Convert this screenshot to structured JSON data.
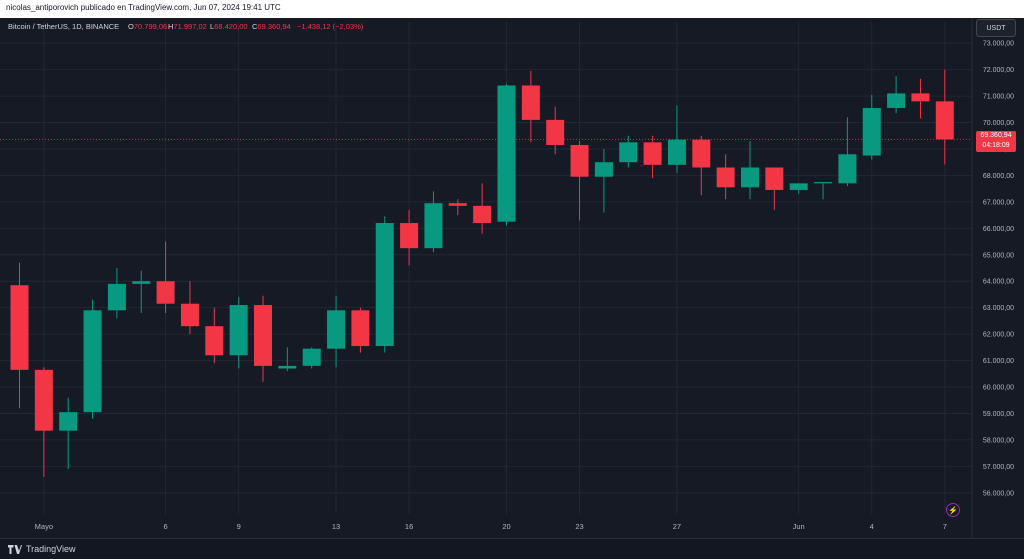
{
  "header": {
    "publisher_line": "nicolas_antiporovich publicado en TradingView.com, Jun 07, 2024 19:41 UTC"
  },
  "symbol": {
    "name": "Bitcoin / TetherUS, 1D, BINANCE",
    "o_label": "O",
    "o_value": "70.799,06",
    "h_label": "H",
    "h_value": "71.997,02",
    "l_label": "L",
    "l_value": "68.420,00",
    "c_label": "C",
    "c_value": "69.360,94",
    "change": "−1.438,12 (−2,03%)"
  },
  "currency_badge": "USDT",
  "last_price": {
    "value": "69.360,94",
    "countdown": "04:18:09"
  },
  "footer": {
    "brand": "TradingView"
  },
  "colors": {
    "up": "#089981",
    "down": "#f23645",
    "background": "#161a25",
    "grid": "#232733"
  },
  "chart_data": {
    "type": "candlestick",
    "ylim": [
      55200,
      73800
    ],
    "y_ticks": [
      56000,
      57000,
      58000,
      59000,
      60000,
      61000,
      62000,
      63000,
      64000,
      65000,
      66000,
      67000,
      68000,
      69000,
      70000,
      71000,
      72000,
      73000
    ],
    "y_tick_labels": [
      "56.000,00",
      "57.000,00",
      "58.000,00",
      "59.000,00",
      "60.000,00",
      "61.000,00",
      "62.000,00",
      "63.000,00",
      "64.000,00",
      "65.000,00",
      "66.000,00",
      "67.000,00",
      "68.000,00",
      "69.000,00",
      "70.000,00",
      "71.000,00",
      "72.000,00",
      "73.000,00"
    ],
    "x_tick_labels": [
      {
        "index": 1,
        "label": "Mayo"
      },
      {
        "index": 6,
        "label": "6"
      },
      {
        "index": 9,
        "label": "9"
      },
      {
        "index": 13,
        "label": "13"
      },
      {
        "index": 16,
        "label": "16"
      },
      {
        "index": 20,
        "label": "20"
      },
      {
        "index": 23,
        "label": "23"
      },
      {
        "index": 27,
        "label": "27"
      },
      {
        "index": 32,
        "label": "Jun"
      },
      {
        "index": 35,
        "label": "4"
      },
      {
        "index": 38,
        "label": "7"
      }
    ],
    "candles": [
      {
        "o": 63850,
        "h": 64700,
        "l": 59200,
        "c": 60650
      },
      {
        "o": 60650,
        "h": 60750,
        "l": 56600,
        "c": 58350
      },
      {
        "o": 58350,
        "h": 59600,
        "l": 56900,
        "c": 59050
      },
      {
        "o": 59050,
        "h": 63300,
        "l": 58800,
        "c": 62900
      },
      {
        "o": 62900,
        "h": 64500,
        "l": 62600,
        "c": 63900
      },
      {
        "o": 63900,
        "h": 64400,
        "l": 62800,
        "c": 64000
      },
      {
        "o": 64000,
        "h": 65500,
        "l": 62800,
        "c": 63150
      },
      {
        "o": 63150,
        "h": 64000,
        "l": 62000,
        "c": 62300
      },
      {
        "o": 62300,
        "h": 63000,
        "l": 60900,
        "c": 61200
      },
      {
        "o": 61200,
        "h": 63400,
        "l": 60700,
        "c": 63100
      },
      {
        "o": 63100,
        "h": 63450,
        "l": 60200,
        "c": 60800
      },
      {
        "o": 60700,
        "h": 61500,
        "l": 60600,
        "c": 60800
      },
      {
        "o": 60800,
        "h": 61500,
        "l": 60700,
        "c": 61450
      },
      {
        "o": 61450,
        "h": 63450,
        "l": 60750,
        "c": 62900
      },
      {
        "o": 62900,
        "h": 63000,
        "l": 61300,
        "c": 61550
      },
      {
        "o": 61550,
        "h": 66450,
        "l": 61300,
        "c": 66200
      },
      {
        "o": 66200,
        "h": 66700,
        "l": 64600,
        "c": 65250
      },
      {
        "o": 65250,
        "h": 67400,
        "l": 65100,
        "c": 66950
      },
      {
        "o": 66950,
        "h": 67100,
        "l": 66500,
        "c": 66850
      },
      {
        "o": 66850,
        "h": 67700,
        "l": 65800,
        "c": 66200
      },
      {
        "o": 66250,
        "h": 71450,
        "l": 66100,
        "c": 71400
      },
      {
        "o": 71400,
        "h": 71950,
        "l": 69250,
        "c": 70100
      },
      {
        "o": 70100,
        "h": 70600,
        "l": 68800,
        "c": 69150
      },
      {
        "o": 69150,
        "h": 69300,
        "l": 66300,
        "c": 67950
      },
      {
        "o": 67950,
        "h": 69000,
        "l": 66600,
        "c": 68500
      },
      {
        "o": 68500,
        "h": 69500,
        "l": 68300,
        "c": 69250
      },
      {
        "o": 69250,
        "h": 69500,
        "l": 67900,
        "c": 68400
      },
      {
        "o": 68400,
        "h": 70650,
        "l": 68100,
        "c": 69350
      },
      {
        "o": 69350,
        "h": 69500,
        "l": 67250,
        "c": 68300
      },
      {
        "o": 68300,
        "h": 68800,
        "l": 67100,
        "c": 67550
      },
      {
        "o": 67550,
        "h": 69300,
        "l": 67100,
        "c": 68300
      },
      {
        "o": 68300,
        "h": 68300,
        "l": 66700,
        "c": 67450
      },
      {
        "o": 67450,
        "h": 67700,
        "l": 67300,
        "c": 67700
      },
      {
        "o": 67700,
        "h": 67700,
        "l": 67100,
        "c": 67750
      },
      {
        "o": 67700,
        "h": 70200,
        "l": 67600,
        "c": 68800
      },
      {
        "o": 68750,
        "h": 71050,
        "l": 68600,
        "c": 70550
      },
      {
        "o": 70550,
        "h": 71750,
        "l": 70350,
        "c": 71100
      },
      {
        "o": 71100,
        "h": 71650,
        "l": 70150,
        "c": 70800
      },
      {
        "o": 70800,
        "h": 72000,
        "l": 68420,
        "c": 69361
      }
    ],
    "last_price": 69361,
    "grid": true
  }
}
